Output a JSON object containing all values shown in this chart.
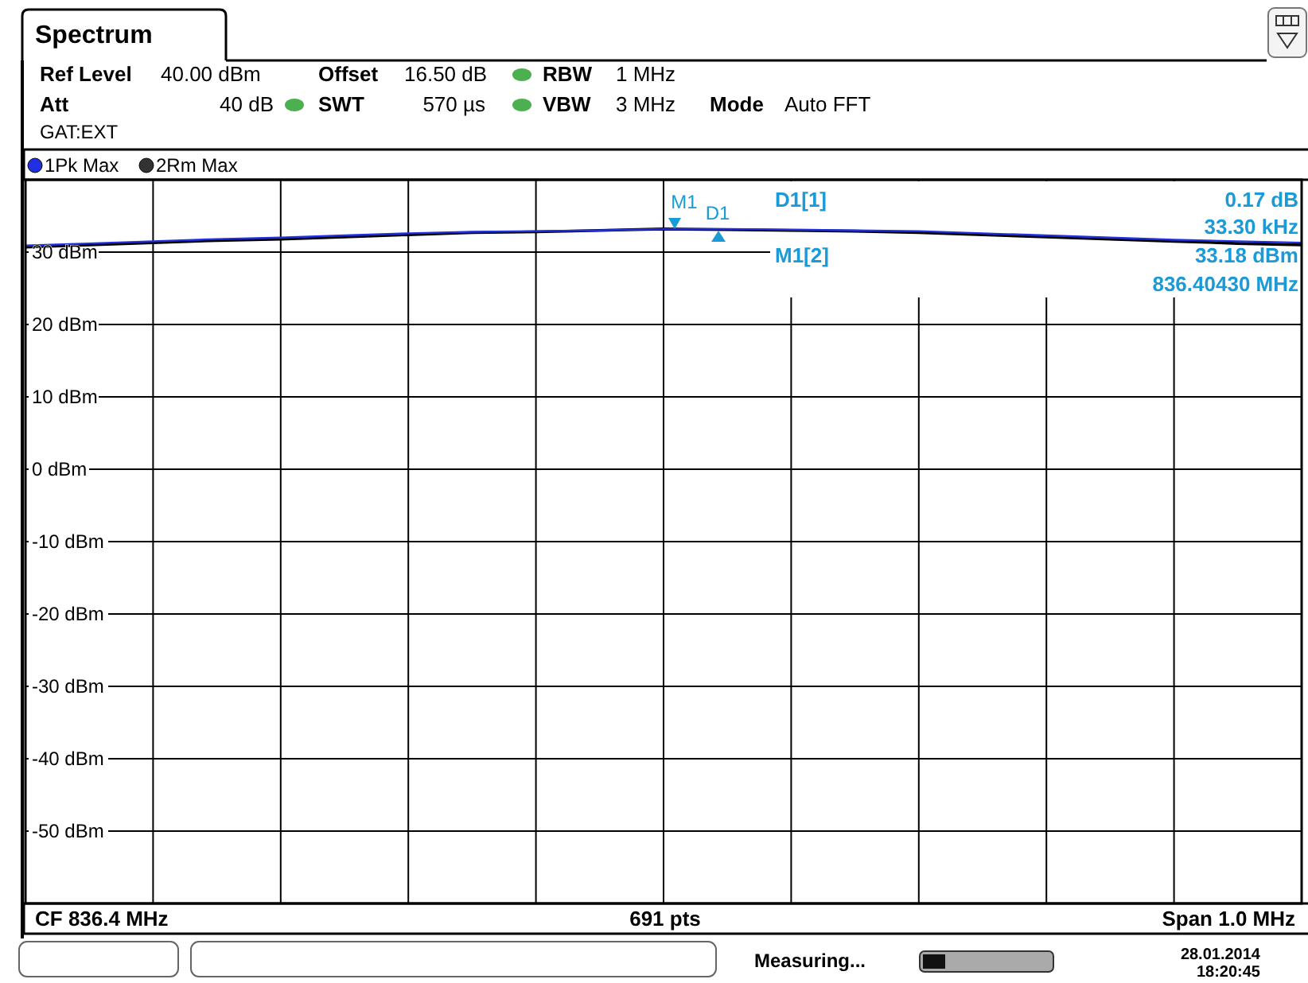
{
  "chart_data": {
    "type": "line",
    "title": "Spectrum",
    "categories": [
      null,
      null,
      null,
      null,
      null,
      null,
      null,
      null,
      null,
      null,
      null,
      null,
      null,
      null,
      null,
      null,
      null,
      null,
      null,
      null,
      null
    ],
    "series": [
      {
        "name": "1Pk Max",
        "color": "#2030e0",
        "values": [
          30.9,
          31.2,
          31.5,
          31.8,
          32.0,
          32.3,
          32.6,
          32.8,
          32.9,
          33.0,
          33.2,
          33.2,
          33.1,
          33.0,
          32.9,
          32.6,
          32.3,
          32.0,
          31.7,
          31.5,
          31.3
        ]
      },
      {
        "name": "2Rm Max",
        "color": "#000000",
        "values": [
          30.7,
          31.0,
          31.3,
          31.6,
          31.8,
          32.1,
          32.4,
          32.7,
          32.8,
          33.0,
          33.2,
          33.1,
          33.0,
          32.9,
          32.7,
          32.4,
          32.1,
          31.8,
          31.5,
          31.2,
          31.0
        ]
      }
    ],
    "ylim": [
      -60,
      40
    ],
    "yticks": [
      {
        "value": 30,
        "label": "30 dBm"
      },
      {
        "value": 20,
        "label": "20 dBm"
      },
      {
        "value": 10,
        "label": "10 dBm"
      },
      {
        "value": 0,
        "label": "0 dBm"
      },
      {
        "value": -10,
        "label": "-10 dBm"
      },
      {
        "value": -20,
        "label": "-20 dBm"
      },
      {
        "value": -30,
        "label": "-30 dBm"
      },
      {
        "value": -40,
        "label": "-40 dBm"
      },
      {
        "value": -50,
        "label": "-50 dBm"
      }
    ],
    "grid": true,
    "legend": "top left",
    "marker": "none",
    "line_style": "solid",
    "annotations": [
      "Ref Level",
      "40.00 dBm",
      "Offset",
      "16.50 dB",
      "RBW",
      "1 MHz",
      "Att",
      "40 dB",
      "SWT",
      "570 µs",
      "VBW",
      "3 MHz",
      "Mode",
      "Auto FFT",
      "GAT:EXT",
      "D1[1]",
      "0.17 dB",
      "33.30 kHz",
      "M1[2]",
      "33.18 dBm",
      "836.40430 MHz",
      "CF 836.4 MHz",
      "691 pts",
      "Span 1.0 MHz",
      "Measuring...",
      "28.01.2014",
      "18:20:45",
      "M1",
      "D1"
    ]
  }
}
